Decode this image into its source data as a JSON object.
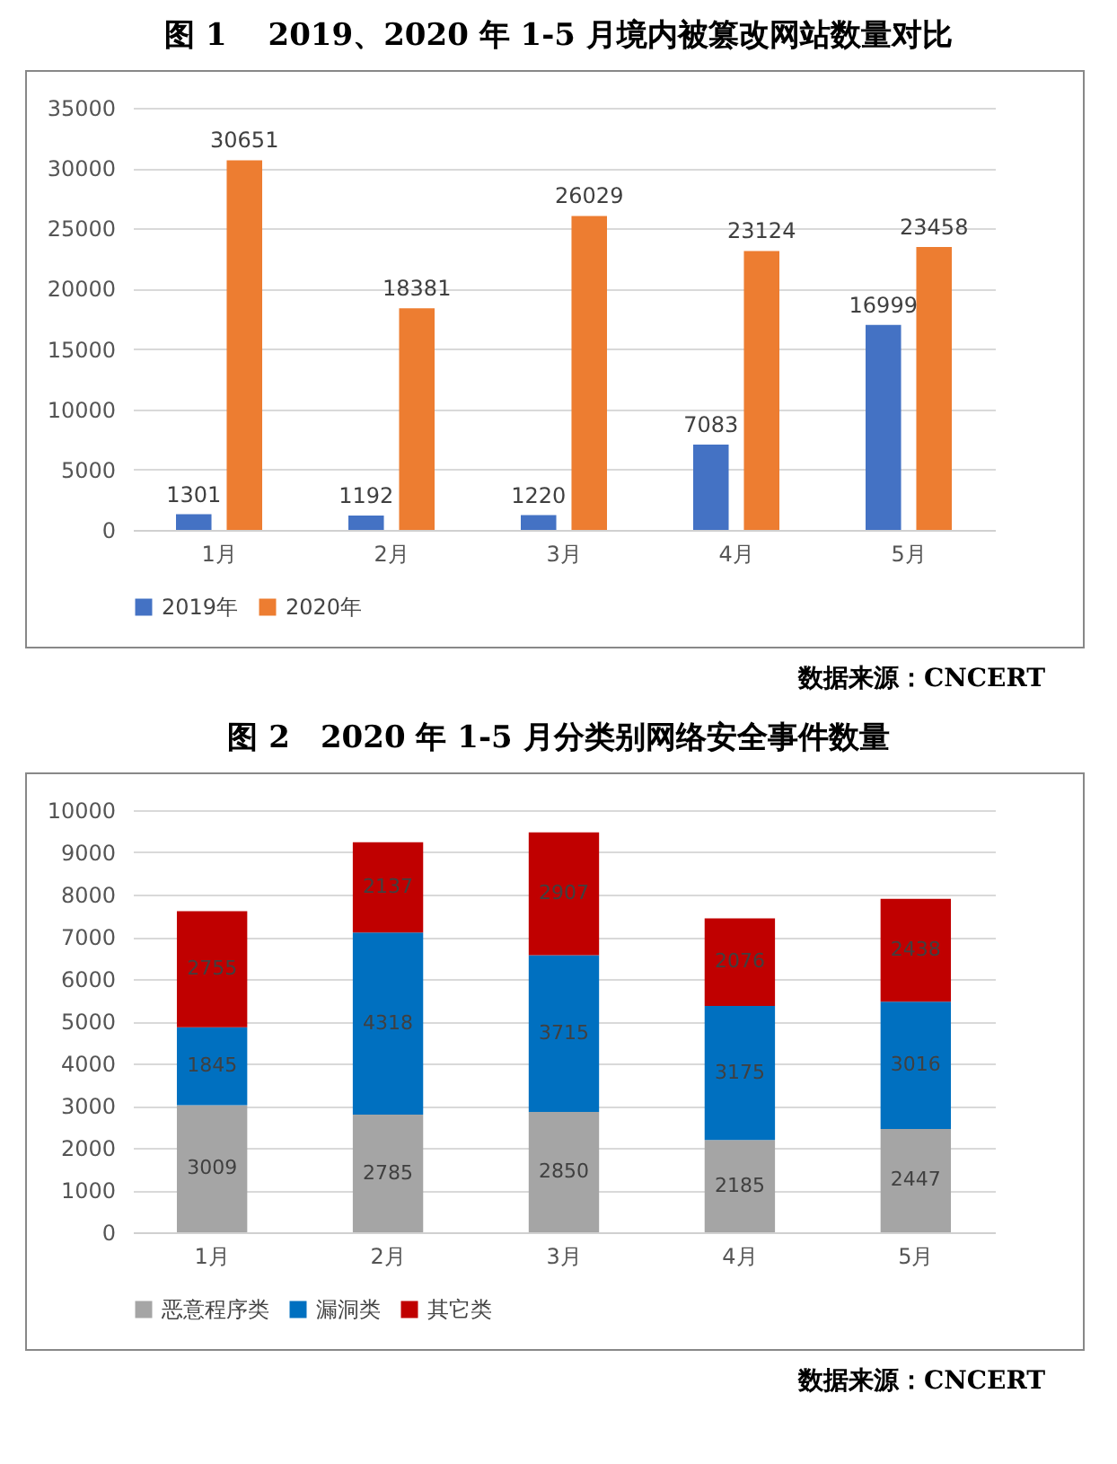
{
  "chart_data": [
    {
      "type": "bar",
      "title": "图 1　 2019、2020 年 1-5 月境内被篡改网站数量对比",
      "categories": [
        "1月",
        "2月",
        "3月",
        "4月",
        "5月"
      ],
      "series": [
        {
          "name": "2019年",
          "color": "#4472c4",
          "values": [
            1301,
            1192,
            1220,
            7083,
            16999
          ]
        },
        {
          "name": "2020年",
          "color": "#ed7d31",
          "values": [
            30651,
            18381,
            26029,
            23124,
            23458
          ]
        }
      ],
      "ylim": [
        0,
        35000
      ],
      "yticks": [
        0,
        5000,
        10000,
        15000,
        20000,
        25000,
        30000,
        35000
      ],
      "grid": "y",
      "legend": "bottom",
      "data_labels": true,
      "annotations": [
        "数据来源：CNCERT"
      ]
    },
    {
      "type": "bar",
      "title": "图 2　2020 年 1-5 月分类别网络安全事件数量",
      "categories": [
        "1月",
        "2月",
        "3月",
        "4月",
        "5月"
      ],
      "stacked": true,
      "series": [
        {
          "name": "恶意程序类",
          "color": "#a5a5a5",
          "values": [
            3009,
            2785,
            2850,
            2185,
            2447
          ]
        },
        {
          "name": "漏洞类",
          "color": "#0070c0",
          "values": [
            1845,
            4318,
            3715,
            3175,
            3016
          ]
        },
        {
          "name": "其它类",
          "color": "#c00000",
          "values": [
            2755,
            2137,
            2907,
            2076,
            2438
          ]
        }
      ],
      "ylim": [
        0,
        10000
      ],
      "yticks": [
        0,
        1000,
        2000,
        3000,
        4000,
        5000,
        6000,
        7000,
        8000,
        9000,
        10000
      ],
      "grid": "y",
      "legend": "bottom",
      "data_labels": true,
      "annotations": [
        "数据来源：CNCERT"
      ]
    }
  ]
}
